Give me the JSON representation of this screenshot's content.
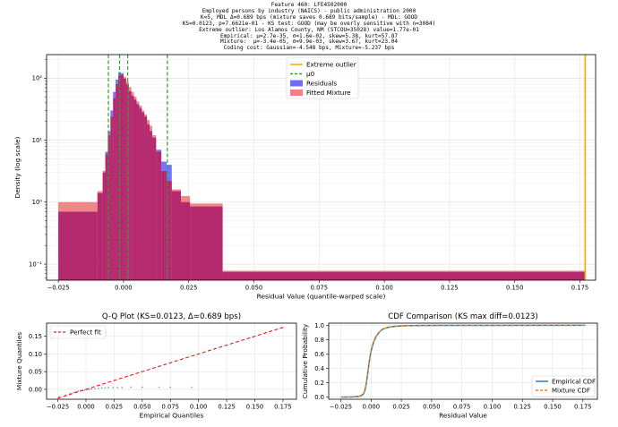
{
  "header": {
    "lines": [
      "Feature 460: LFE4502000",
      "Employed persons by industry (NAICS) - public administration 2000",
      "K=5, MDL Δ=0.689 bps (mixture saves 0.689 bits/sample) - MDL: GOOD",
      "KS=0.0123, p=7.6621e-01 - KS test: GOOD (may be overly sensitive with n=3084)",
      "Extreme outlier: Los Alamos County, NM (STCOU=35028) value=1.77e-01",
      "Empirical: μ=2.7e-35, σ=1.6e-02, skew=5.38, kurt=57.87",
      "Mixture:  μ=-3.4e-05, σ=9.9e-03, skew=3.67, kurt=23.04",
      "Coding cost: Gaussian=-4.548 bps, Mixture=-5.237 bps"
    ]
  },
  "colors": {
    "residuals": "#6d6dff",
    "mixture": "#f08080",
    "overlap": "#b0226e",
    "outlier": "#ffa500",
    "mu0": "#2ca02c",
    "perfect_fit": "#e31a1c",
    "empirical_cdf": "#1f77b4",
    "mixture_cdf": "#ff7f0e"
  },
  "chart_data": [
    {
      "type": "bar",
      "title": "",
      "xlabel": "Residual Value (quantile-warped scale)",
      "ylabel": "Density (log scale)",
      "yscale": "log",
      "xlim": [
        -0.0295,
        0.181
      ],
      "ylim": [
        0.055,
        240
      ],
      "xticks": [
        -0.025,
        0.0,
        0.025,
        0.05,
        0.075,
        0.1,
        0.125,
        0.15,
        0.175
      ],
      "xtick_labels": [
        "−0.025",
        "0.000",
        "0.025",
        "0.050",
        "0.075",
        "0.100",
        "0.125",
        "0.150",
        "0.175"
      ],
      "yticks": [
        0.1,
        1,
        10,
        100
      ],
      "ytick_labels": [
        "10⁻¹",
        "10⁰",
        "10¹",
        "10²"
      ],
      "grid": true,
      "legend_position": "top-right",
      "legend": [
        "Extreme outlier",
        "μ0",
        "Residuals",
        "Fitted Mixture"
      ],
      "extreme_outlier_x": 0.177,
      "mu0_x": [
        -0.0058,
        -0.0015,
        0.0016,
        0.0168
      ],
      "bins": [
        {
          "x0": -0.025,
          "x1": -0.01,
          "residuals": 0.7,
          "mixture": 1.0
        },
        {
          "x0": -0.01,
          "x1": -0.008,
          "residuals": 1.4,
          "mixture": 1.5
        },
        {
          "x0": -0.008,
          "x1": -0.007,
          "residuals": 3.0,
          "mixture": 3.2
        },
        {
          "x0": -0.007,
          "x1": -0.006,
          "residuals": 6.5,
          "mixture": 6.0
        },
        {
          "x0": -0.006,
          "x1": -0.005,
          "residuals": 14,
          "mixture": 12
        },
        {
          "x0": -0.005,
          "x1": -0.004,
          "residuals": 30,
          "mixture": 24
        },
        {
          "x0": -0.004,
          "x1": -0.003,
          "residuals": 60,
          "mixture": 48
        },
        {
          "x0": -0.003,
          "x1": -0.002,
          "residuals": 95,
          "mixture": 80
        },
        {
          "x0": -0.002,
          "x1": -0.001,
          "residuals": 125,
          "mixture": 110
        },
        {
          "x0": -0.001,
          "x1": 0.0,
          "residuals": 120,
          "mixture": 115
        },
        {
          "x0": 0.0,
          "x1": 0.001,
          "residuals": 98,
          "mixture": 105
        },
        {
          "x0": 0.001,
          "x1": 0.002,
          "residuals": 80,
          "mixture": 88
        },
        {
          "x0": 0.002,
          "x1": 0.003,
          "residuals": 62,
          "mixture": 72
        },
        {
          "x0": 0.003,
          "x1": 0.004,
          "residuals": 52,
          "mixture": 60
        },
        {
          "x0": 0.004,
          "x1": 0.005,
          "residuals": 45,
          "mixture": 50
        },
        {
          "x0": 0.005,
          "x1": 0.006,
          "residuals": 38,
          "mixture": 42
        },
        {
          "x0": 0.006,
          "x1": 0.007,
          "residuals": 33,
          "mixture": 36
        },
        {
          "x0": 0.007,
          "x1": 0.008,
          "residuals": 28,
          "mixture": 30
        },
        {
          "x0": 0.008,
          "x1": 0.009,
          "residuals": 24,
          "mixture": 26
        },
        {
          "x0": 0.009,
          "x1": 0.01,
          "residuals": 18,
          "mixture": 21
        },
        {
          "x0": 0.01,
          "x1": 0.011,
          "residuals": 14,
          "mixture": 17
        },
        {
          "x0": 0.011,
          "x1": 0.0125,
          "residuals": 11,
          "mixture": 12
        },
        {
          "x0": 0.0125,
          "x1": 0.0145,
          "residuals": 7.0,
          "mixture": 6.5
        },
        {
          "x0": 0.0145,
          "x1": 0.0165,
          "residuals": 4.5,
          "mixture": 3.2
        },
        {
          "x0": 0.0165,
          "x1": 0.0185,
          "residuals": 4.0,
          "mixture": 2.2
        },
        {
          "x0": 0.0185,
          "x1": 0.022,
          "residuals": 1.5,
          "mixture": 1.6
        },
        {
          "x0": 0.022,
          "x1": 0.0255,
          "residuals": 1.0,
          "mixture": 1.25
        },
        {
          "x0": 0.0255,
          "x1": 0.038,
          "residuals": 0.85,
          "mixture": 0.95
        },
        {
          "x0": 0.038,
          "x1": 0.177,
          "residuals": 0.075,
          "mixture": 0.078
        }
      ]
    },
    {
      "type": "scatter",
      "title": "Q-Q Plot (KS=0.0123, Δ=0.689 bps)",
      "xlabel": "Empirical Quantiles",
      "ylabel": "Mixture Quantiles",
      "xlim": [
        -0.035,
        0.187
      ],
      "ylim": [
        -0.028,
        0.187
      ],
      "xticks": [
        -0.025,
        0.0,
        0.025,
        0.05,
        0.075,
        0.1,
        0.125,
        0.15,
        0.175
      ],
      "xtick_labels": [
        "−0.025",
        "0.000",
        "0.025",
        "0.050",
        "0.075",
        "0.100",
        "0.125",
        "0.150",
        "0.175"
      ],
      "yticks": [
        0.0,
        0.05,
        0.1,
        0.15
      ],
      "ytick_labels": [
        "0.00",
        "0.05",
        "0.10",
        "0.15"
      ],
      "grid": true,
      "legend_position": "top-left",
      "legend": [
        "Perfect fit"
      ],
      "perfect_fit": {
        "x": [
          -0.025,
          0.177
        ],
        "y": [
          -0.025,
          0.177
        ]
      },
      "points": [
        [
          -0.024,
          -0.021
        ],
        [
          -0.018,
          -0.016
        ],
        [
          -0.014,
          -0.012
        ],
        [
          -0.011,
          -0.009
        ],
        [
          -0.009,
          -0.007
        ],
        [
          -0.007,
          -0.005
        ],
        [
          -0.005,
          -0.004
        ],
        [
          -0.003,
          -0.003
        ],
        [
          -0.001,
          -0.002
        ],
        [
          0.001,
          -0.001
        ],
        [
          0.003,
          0.0
        ],
        [
          0.005,
          0.001
        ],
        [
          0.008,
          0.002
        ],
        [
          0.011,
          0.003
        ],
        [
          0.014,
          0.004
        ],
        [
          0.017,
          0.004
        ],
        [
          0.02,
          0.005
        ],
        [
          0.024,
          0.005
        ],
        [
          0.028,
          0.005
        ],
        [
          0.032,
          0.005
        ],
        [
          0.04,
          0.006
        ],
        [
          0.05,
          0.006
        ],
        [
          0.065,
          0.006
        ],
        [
          0.075,
          0.006
        ],
        [
          0.094,
          0.006
        ]
      ]
    },
    {
      "type": "line",
      "title": "CDF Comparison (KS max diff=0.0123)",
      "xlabel": "Residual Value",
      "ylabel": "Cumulative Probability",
      "xlim": [
        -0.035,
        0.187
      ],
      "ylim": [
        -0.03,
        1.03
      ],
      "xticks": [
        -0.025,
        0.0,
        0.025,
        0.05,
        0.075,
        0.1,
        0.125,
        0.15,
        0.175
      ],
      "xtick_labels": [
        "−0.025",
        "0.000",
        "0.025",
        "0.050",
        "0.075",
        "0.100",
        "0.125",
        "0.150",
        "0.175"
      ],
      "yticks": [
        0.0,
        0.2,
        0.4,
        0.6,
        0.8,
        1.0
      ],
      "ytick_labels": [
        "0.0",
        "0.2",
        "0.4",
        "0.6",
        "0.8",
        "1.0"
      ],
      "grid": true,
      "legend_position": "bottom-right",
      "series": [
        {
          "name": "Empirical CDF",
          "x": [
            -0.025,
            -0.015,
            -0.01,
            -0.008,
            -0.006,
            -0.005,
            -0.004,
            -0.003,
            -0.002,
            -0.001,
            0.0,
            0.002,
            0.004,
            0.006,
            0.008,
            0.01,
            0.015,
            0.02,
            0.03,
            0.04,
            0.06,
            0.1,
            0.177
          ],
          "y": [
            0.0,
            0.003,
            0.01,
            0.02,
            0.05,
            0.1,
            0.18,
            0.3,
            0.43,
            0.55,
            0.64,
            0.76,
            0.84,
            0.89,
            0.925,
            0.95,
            0.975,
            0.987,
            0.995,
            0.998,
            0.999,
            0.9995,
            1.0
          ]
        },
        {
          "name": "Mixture CDF",
          "x": [
            -0.025,
            -0.015,
            -0.01,
            -0.008,
            -0.006,
            -0.005,
            -0.004,
            -0.003,
            -0.002,
            -0.001,
            0.0,
            0.002,
            0.004,
            0.006,
            0.008,
            0.01,
            0.015,
            0.02,
            0.03,
            0.04,
            0.06,
            0.1,
            0.177
          ],
          "y": [
            0.0,
            0.004,
            0.012,
            0.025,
            0.055,
            0.11,
            0.19,
            0.31,
            0.44,
            0.56,
            0.65,
            0.765,
            0.845,
            0.89,
            0.925,
            0.95,
            0.975,
            0.987,
            0.995,
            0.998,
            0.999,
            0.9995,
            1.0
          ]
        }
      ]
    }
  ]
}
